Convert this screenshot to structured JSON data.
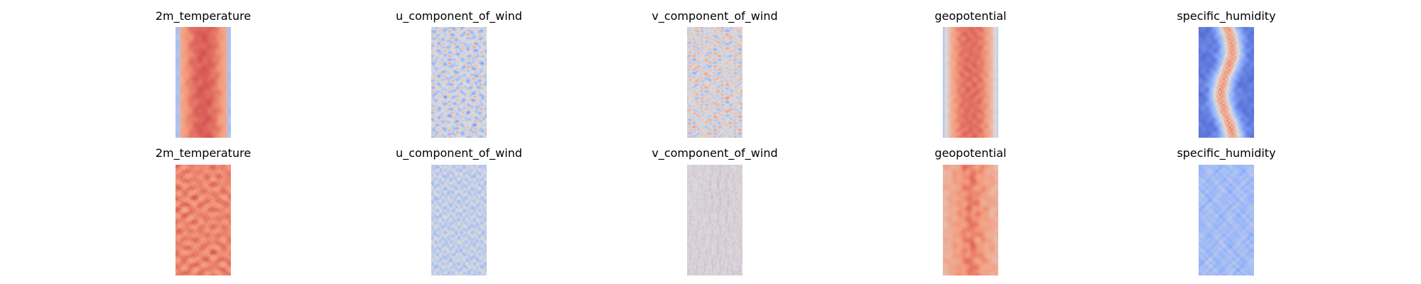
{
  "figure": {
    "rows": [
      {
        "panels": [
          {
            "title": "2m_temperature",
            "pattern": "warm_core"
          },
          {
            "title": "u_component_of_wind",
            "pattern": "mixed_cool"
          },
          {
            "title": "v_component_of_wind",
            "pattern": "neutral_speckle"
          },
          {
            "title": "geopotential",
            "pattern": "smooth_warm_core"
          },
          {
            "title": "specific_humidity",
            "pattern": "cold_with_red_streak"
          }
        ]
      },
      {
        "panels": [
          {
            "title": "2m_temperature",
            "pattern": "warm_noisy"
          },
          {
            "title": "u_component_of_wind",
            "pattern": "light_noisy"
          },
          {
            "title": "v_component_of_wind",
            "pattern": "neutral_noisy"
          },
          {
            "title": "geopotential",
            "pattern": "warm_noisy_core"
          },
          {
            "title": "specific_humidity",
            "pattern": "cool_noisy"
          }
        ]
      }
    ]
  },
  "chart_data": {
    "type": "heatmap",
    "colormap": "coolwarm",
    "colors": {
      "low": "#3b4cc0",
      "mid": "#dddddd",
      "high": "#b40426"
    },
    "axes_visible": false,
    "grid": false,
    "legend": "none",
    "layout": "2 rows x 5 columns"
  }
}
